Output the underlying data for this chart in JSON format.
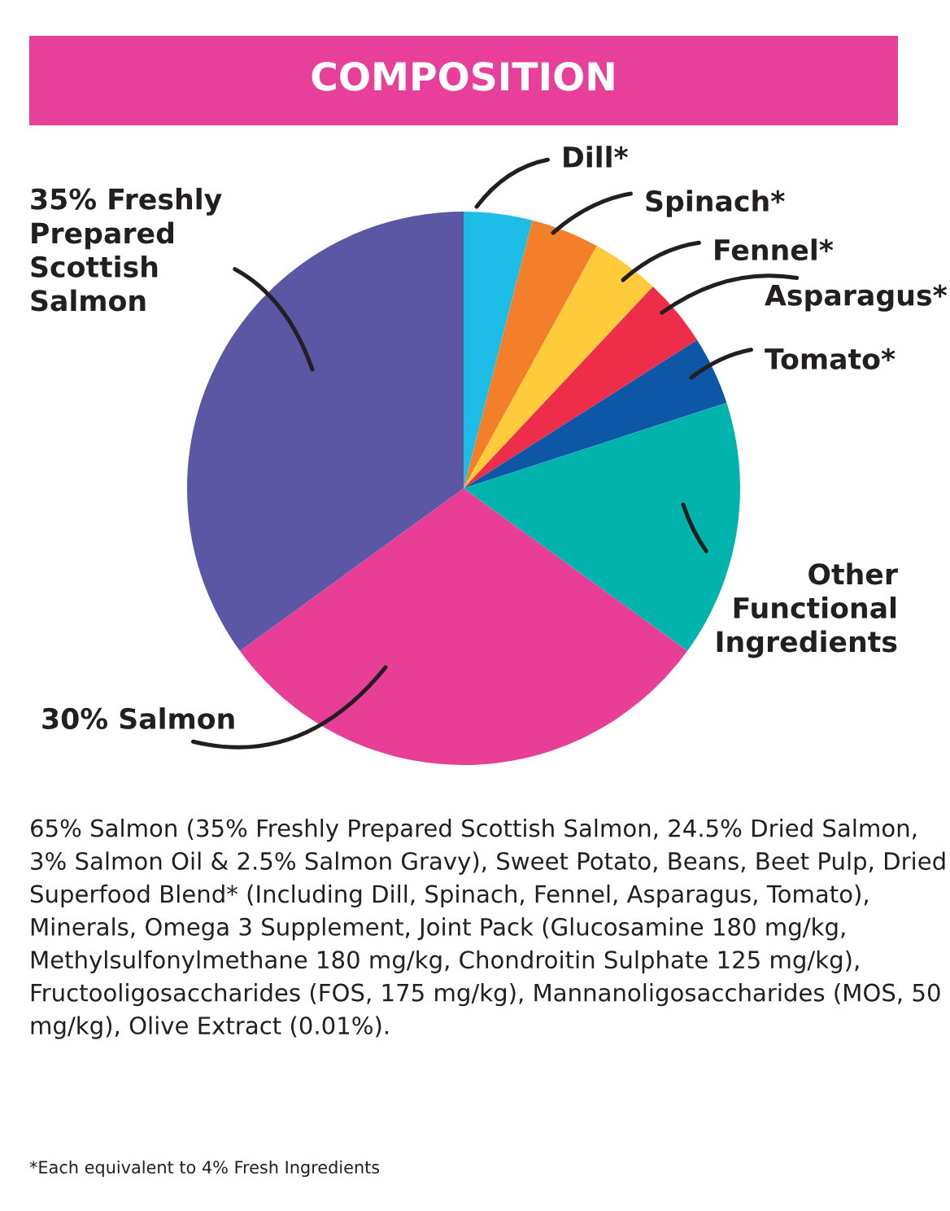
{
  "chart_data": {
    "type": "pie",
    "title": "COMPOSITION",
    "categories": [
      "Dill*",
      "Spinach*",
      "Fennel*",
      "Asparagus*",
      "Tomato*",
      "Other\nFunctional\nIngredients",
      "30% Salmon",
      "35% Freshly\nPrepared\nScottish\nSalmon"
    ],
    "values": [
      4,
      4,
      4,
      4,
      4,
      15,
      30,
      35
    ],
    "colors": [
      "#1ebde8",
      "#f47f2a",
      "#fecb3a",
      "#ee2d4a",
      "#0e57a6",
      "#00b3ad",
      "#e83e96",
      "#5b57a4"
    ],
    "legend": false,
    "annotations": [
      "65% Salmon (35% Freshly Prepared Scottish Salmon, 24.5% Dried Salmon, 3% Salmon Oil & 2.5% Salmon Gravy), Sweet Potato, Beans, Beet Pulp, Dried Superfood Blend* (Including Dill, Spinach, Fennel, Asparagus, Tomato), Minerals, Omega 3 Supplement, Joint Pack (Glucosamine 180 mg/kg, Methylsulfonylmethane 180 mg/kg, Chondroitin Sulphate 125 mg/kg), Fructooligosaccharides (FOS, 175 mg/kg), Mannanoligosaccharides (MOS, 50 mg/kg), Olive Extract (0.01%).",
      "*Each equivalent to 4% Fresh Ingredients"
    ]
  }
}
